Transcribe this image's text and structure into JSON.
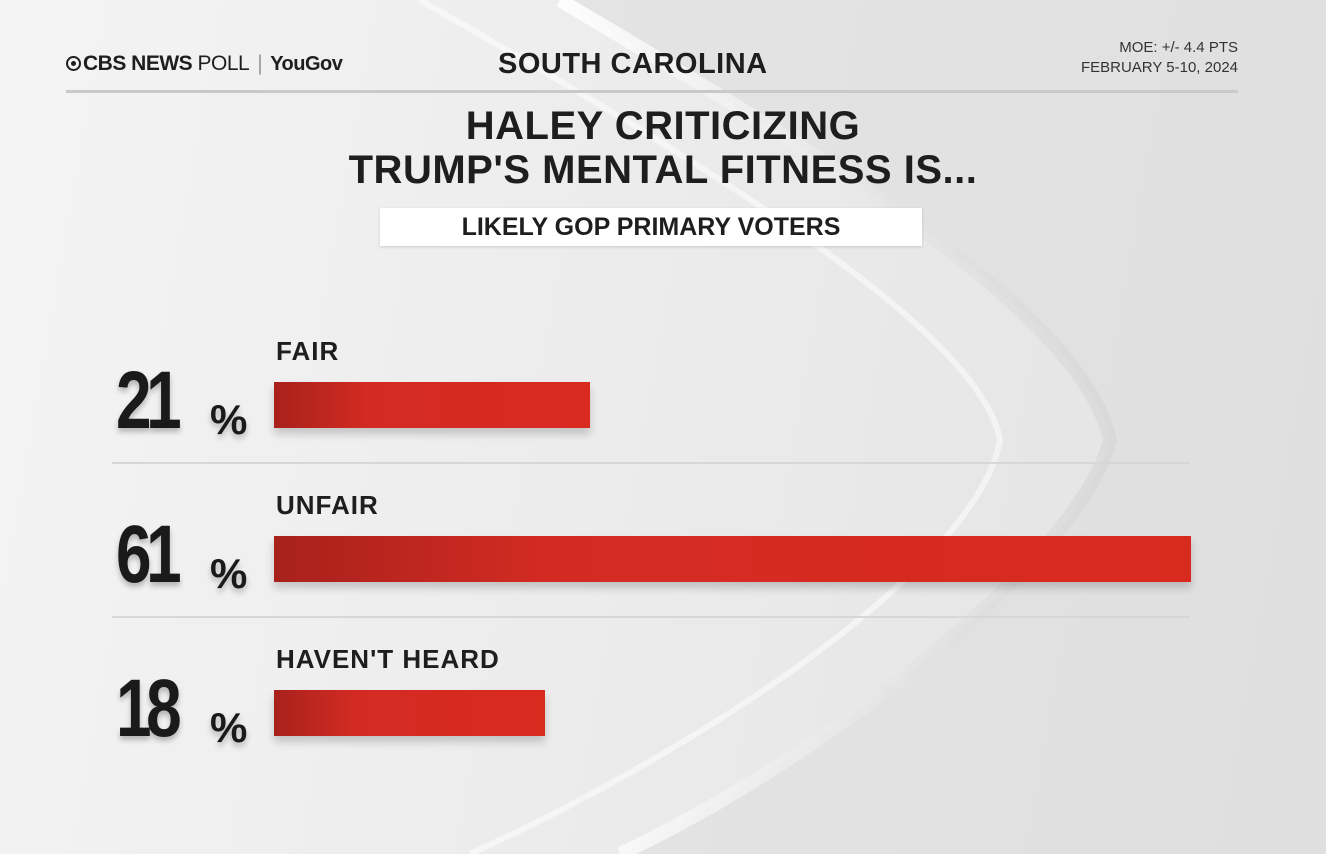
{
  "header": {
    "brand_cbs": "CBS NEWS",
    "brand_poll": "POLL",
    "brand_yougov": "YouGov",
    "state": "SOUTH CAROLINA",
    "moe": "MOE: +/- 4.4 PTS",
    "dates": "FEBRUARY 5-10, 2024"
  },
  "chart_data": {
    "type": "bar",
    "title": "HALEY CRITICIZING TRUMP'S MENTAL FITNESS IS...",
    "title_lines": [
      "HALEY CRITICIZING",
      "TRUMP'S MENTAL FITNESS IS..."
    ],
    "subtitle": "LIKELY GOP PRIMARY VOTERS",
    "categories": [
      "FAIR",
      "UNFAIR",
      "HAVEN'T HEARD"
    ],
    "values": [
      21,
      61,
      18
    ],
    "value_labels": [
      "21",
      "61",
      "18"
    ],
    "unit": "%",
    "orientation": "horizontal",
    "xlim": [
      0,
      61
    ],
    "bar_color": "#d32b22"
  }
}
